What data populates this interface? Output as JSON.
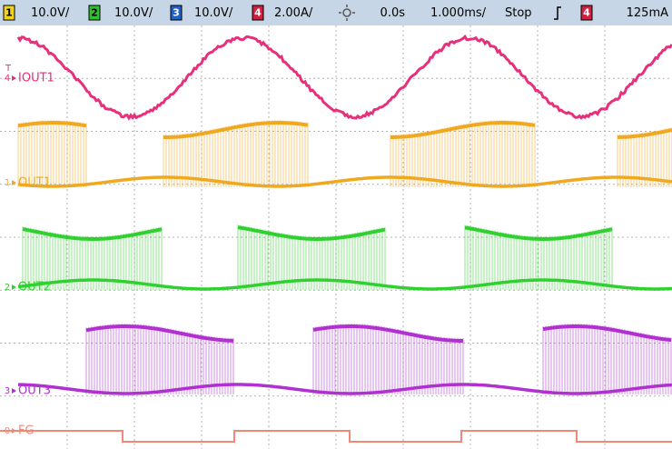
{
  "status_bar": {
    "channels": [
      {
        "number": "1",
        "scale": "10.0V/"
      },
      {
        "number": "2",
        "scale": "10.0V/"
      },
      {
        "number": "3",
        "scale": "10.0V/"
      },
      {
        "number": "4",
        "scale": "2.00A/"
      }
    ],
    "time_offset": "0.0s",
    "timebase": "1.000ms/",
    "run_state": "Stop",
    "trigger_channel": "4",
    "trigger_level": "125mA"
  },
  "screen": {
    "trigger_marker": "T",
    "traces": [
      {
        "marker": "4",
        "label": "IOUT1"
      },
      {
        "marker": "1",
        "label": "OUT1"
      },
      {
        "marker": "2",
        "label": "OUT2"
      },
      {
        "marker": "3",
        "label": "OUT3"
      },
      {
        "marker": "0",
        "label": "FG"
      }
    ]
  }
}
